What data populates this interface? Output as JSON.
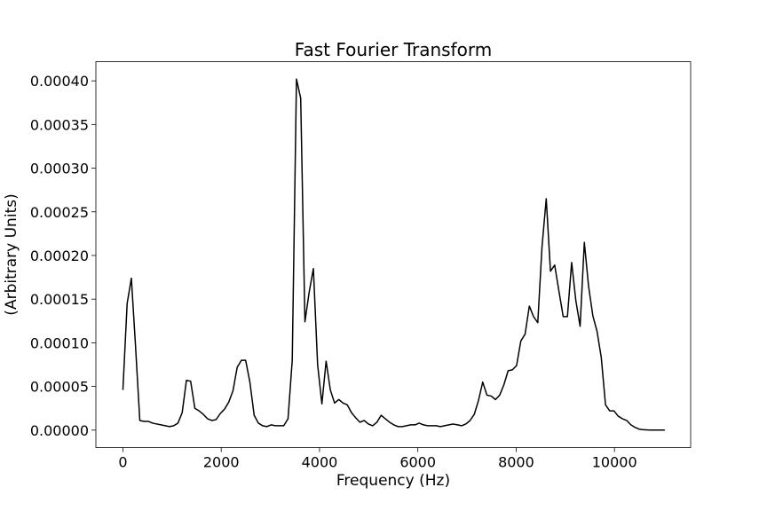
{
  "chart_data": {
    "type": "line",
    "title": "Fast Fourier Transform",
    "xlabel": "Frequency (Hz)",
    "ylabel": "(Arbitrary Units)",
    "xlim": [
      -550,
      11550
    ],
    "ylim": [
      -2e-05,
      0.000422
    ],
    "xticks": [
      0,
      2000,
      4000,
      6000,
      8000,
      10000
    ],
    "xtick_labels": [
      "0",
      "2000",
      "4000",
      "6000",
      "8000",
      "10000"
    ],
    "yticks": [
      0,
      5e-05,
      0.0001,
      0.00015,
      0.0002,
      0.00025,
      0.0003,
      0.00035,
      0.0004
    ],
    "ytick_labels": [
      "0.00000",
      "0.00005",
      "0.00010",
      "0.00015",
      "0.00020",
      "0.00025",
      "0.00030",
      "0.00035",
      "0.00040"
    ],
    "grid": false,
    "line_color": "#000000",
    "series": [
      {
        "x": [
          0,
          86,
          172,
          258,
          344,
          431,
          517,
          603,
          689,
          775,
          861,
          947,
          1033,
          1120,
          1206,
          1292,
          1378,
          1464,
          1550,
          1636,
          1722,
          1809,
          1895,
          1981,
          2067,
          2153,
          2239,
          2325,
          2411,
          2497,
          2583,
          2670,
          2756,
          2842,
          2928,
          3014,
          3100,
          3186,
          3272,
          3359,
          3445,
          3531,
          3617,
          3703,
          3789,
          3875,
          3961,
          4048,
          4134,
          4220,
          4306,
          4392,
          4478,
          4564,
          4650,
          4737,
          4823,
          4909,
          4995,
          5081,
          5167,
          5253,
          5339,
          5426,
          5512,
          5598,
          5684,
          5770,
          5856,
          5942,
          6028,
          6115,
          6201,
          6287,
          6373,
          6459,
          6545,
          6631,
          6717,
          6804,
          6890,
          6976,
          7062,
          7148,
          7234,
          7320,
          7406,
          7493,
          7579,
          7665,
          7751,
          7837,
          7923,
          8009,
          8095,
          8182,
          8268,
          8354,
          8440,
          8526,
          8612,
          8698,
          8784,
          8871,
          8957,
          9043,
          9129,
          9215,
          9301,
          9387,
          9473,
          9560,
          9646,
          9732,
          9818,
          9904,
          9990,
          10076,
          10162,
          10249,
          10335,
          10421,
          10507,
          10593,
          10679,
          10765,
          10851,
          10938,
          11024
        ],
        "y": [
          4.6e-05,
          0.000145,
          0.000174,
          9.5e-05,
          1.1e-05,
          1e-05,
          1e-05,
          8e-06,
          7e-06,
          6e-06,
          5e-06,
          4e-06,
          5e-06,
          8e-06,
          2e-05,
          5.7e-05,
          5.6e-05,
          2.5e-05,
          2.2e-05,
          1.8e-05,
          1.3e-05,
          1.1e-05,
          1.2e-05,
          1.9e-05,
          2.4e-05,
          3.2e-05,
          4.5e-05,
          7.2e-05,
          8e-05,
          8e-05,
          5.5e-05,
          1.7e-05,
          8e-06,
          5e-06,
          4e-06,
          6e-06,
          5e-06,
          5e-06,
          5e-06,
          1.3e-05,
          8e-05,
          0.000402,
          0.00038,
          0.000124,
          0.000158,
          0.000185,
          7.5e-05,
          3e-05,
          7.9e-05,
          4.6e-05,
          3.1e-05,
          3.5e-05,
          3.1e-05,
          2.9e-05,
          2e-05,
          1.4e-05,
          9e-06,
          1.1e-05,
          7e-06,
          5e-06,
          9e-06,
          1.7e-05,
          1.3e-05,
          9e-06,
          6e-06,
          4e-06,
          4e-06,
          5e-06,
          6e-06,
          6e-06,
          8e-06,
          6e-06,
          5e-06,
          5e-06,
          5e-06,
          4e-06,
          5e-06,
          6e-06,
          7e-06,
          6e-06,
          5e-06,
          7e-06,
          1.1e-05,
          1.8e-05,
          3.4e-05,
          5.5e-05,
          4e-05,
          3.9e-05,
          3.5e-05,
          4e-05,
          5.2e-05,
          6.8e-05,
          6.9e-05,
          7.4e-05,
          0.000102,
          0.00011,
          0.000142,
          0.00013,
          0.000123,
          0.00021,
          0.000265,
          0.000182,
          0.000189,
          0.000159,
          0.00013,
          0.00013,
          0.000192,
          0.000148,
          0.000119,
          0.000215,
          0.000165,
          0.000131,
          0.000113,
          8.3e-05,
          2.9e-05,
          2.2e-05,
          2.2e-05,
          1.6e-05,
          1.3e-05,
          1.1e-05,
          6e-06,
          3e-06,
          1e-06,
          5e-07,
          2e-07,
          1e-07,
          1e-07,
          1e-07,
          1e-07
        ]
      }
    ]
  }
}
